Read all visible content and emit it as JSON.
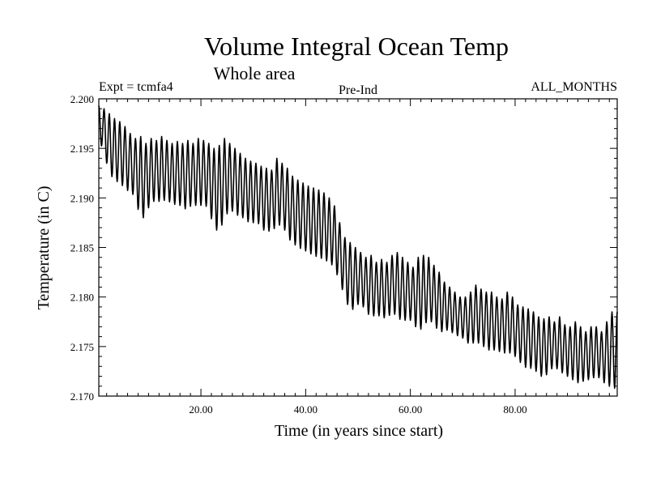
{
  "chart_data": {
    "type": "line",
    "title": "Volume Integral Ocean Temp",
    "subtitle": "Whole area",
    "expt_label": "Expt = tcmfa4",
    "run_label": "Pre-Ind",
    "months_label": "ALL_MONTHS",
    "xlabel": "Time (in years since start)",
    "ylabel": "Temperature (in C)",
    "xlim": [
      0.5,
      99.5
    ],
    "ylim": [
      2.17,
      2.2
    ],
    "x_ticks": [
      20,
      40,
      60,
      80
    ],
    "x_tick_labels": [
      "20.00",
      "40.00",
      "60.00",
      "80.00"
    ],
    "y_ticks": [
      2.17,
      2.175,
      2.18,
      2.185,
      2.19,
      2.195,
      2.2
    ],
    "y_tick_labels": [
      "2.170",
      "2.175",
      "2.180",
      "2.185",
      "2.190",
      "2.195",
      "2.200"
    ],
    "grid": false,
    "series": [
      {
        "name": "Volume integral ocean temperature",
        "color": "#000000",
        "sampling": "monthly, seasonal cycle",
        "years_start": 0.5,
        "years_step": 1,
        "annual_max": [
          2.1993,
          2.199,
          2.1985,
          2.198,
          2.1977,
          2.1972,
          2.1965,
          2.196,
          2.1962,
          2.1955,
          2.196,
          2.1958,
          2.1962,
          2.1958,
          2.1955,
          2.1957,
          2.1955,
          2.1958,
          2.1955,
          2.196,
          2.1958,
          2.1955,
          2.195,
          2.1953,
          2.196,
          2.1955,
          2.195,
          2.1945,
          2.194,
          2.1937,
          2.1935,
          2.1932,
          2.193,
          2.1928,
          2.194,
          2.1935,
          2.193,
          2.1922,
          2.1918,
          2.1915,
          2.1912,
          2.191,
          2.1908,
          2.1905,
          2.19,
          2.1892,
          2.1875,
          2.186,
          2.1855,
          2.185,
          2.1845,
          2.184,
          2.1842,
          2.1835,
          2.1838,
          2.1835,
          2.1842,
          2.1845,
          2.184,
          2.1835,
          2.183,
          2.184,
          2.1842,
          2.184,
          2.1832,
          2.1825,
          2.1815,
          2.181,
          2.1805,
          2.18,
          2.18,
          2.1805,
          2.1812,
          2.1808,
          2.1805,
          2.1805,
          2.18,
          2.1798,
          2.1805,
          2.18,
          2.1792,
          2.179,
          2.1788,
          2.1785,
          2.178,
          2.1778,
          2.178,
          2.1775,
          2.178,
          2.1772,
          2.177,
          2.1775,
          2.177,
          2.1765,
          2.177,
          2.177,
          2.1765,
          2.1775,
          2.1785
        ],
        "annual_min": [
          2.196,
          2.1945,
          2.1925,
          2.1918,
          2.1915,
          2.191,
          2.1905,
          2.1902,
          2.1875,
          2.1885,
          2.1895,
          2.1898,
          2.1895,
          2.19,
          2.1892,
          2.1895,
          2.189,
          2.1888,
          2.1895,
          2.189,
          2.1895,
          2.1888,
          2.187,
          2.1865,
          2.188,
          2.1888,
          2.1885,
          2.188,
          2.188,
          2.1872,
          2.1878,
          2.187,
          2.1865,
          2.1868,
          2.187,
          2.1875,
          2.186,
          2.1855,
          2.185,
          2.1848,
          2.1845,
          2.1842,
          2.184,
          2.1838,
          2.1835,
          2.183,
          2.1815,
          2.18,
          2.1785,
          2.179,
          2.1795,
          2.1785,
          2.178,
          2.1782,
          2.178,
          2.1778,
          2.1785,
          2.178,
          2.1775,
          2.1778,
          2.1775,
          2.1765,
          2.177,
          2.1778,
          2.1772,
          2.1765,
          2.1765,
          2.1768,
          2.176,
          2.1762,
          2.1755,
          2.1752,
          2.1755,
          2.1752,
          2.1748,
          2.1745,
          2.1748,
          2.1742,
          2.1745,
          2.1742,
          2.1738,
          2.173,
          2.1728,
          2.1728,
          2.1722,
          2.1718,
          2.1725,
          2.173,
          2.1725,
          2.1722,
          2.1718,
          2.1715,
          2.1712,
          2.1718,
          2.1715,
          2.1722,
          2.1715,
          2.1712,
          2.1708
        ]
      }
    ]
  }
}
